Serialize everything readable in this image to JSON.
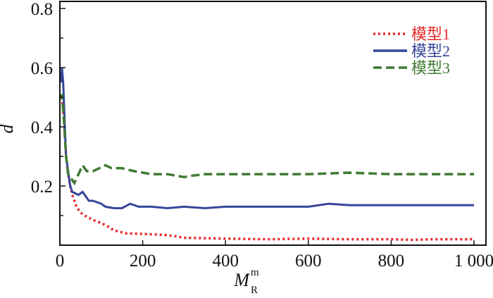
{
  "chart_data": {
    "type": "line",
    "title": "",
    "xlabel": {
      "main": "M",
      "sub": "R",
      "sup": "m"
    },
    "ylabel": "d",
    "xlim": [
      0,
      1000
    ],
    "ylim": [
      0,
      0.8
    ],
    "xticks": [
      0,
      200,
      400,
      600,
      800,
      1000
    ],
    "xtick_labels": [
      "0",
      "200",
      "400",
      "600",
      "800",
      "1 000"
    ],
    "yticks": [
      0.2,
      0.4,
      0.6,
      0.8
    ],
    "ytick_labels": [
      "0.2",
      "0.4",
      "0.6",
      "0.8"
    ],
    "grid": false,
    "legend_position": "top-right",
    "series": [
      {
        "name": "模型1",
        "color": "#e8262a",
        "style": "dotted",
        "x": [
          5,
          10,
          15,
          20,
          25,
          30,
          40,
          50,
          60,
          80,
          100,
          120,
          130,
          160,
          200,
          250,
          280,
          300,
          400,
          500,
          600,
          700,
          800,
          850,
          900,
          1000
        ],
        "y": [
          0.5,
          0.42,
          0.3,
          0.24,
          0.2,
          0.17,
          0.13,
          0.11,
          0.1,
          0.085,
          0.075,
          0.06,
          0.05,
          0.04,
          0.038,
          0.035,
          0.03,
          0.025,
          0.022,
          0.02,
          0.022,
          0.02,
          0.02,
          0.018,
          0.02,
          0.02
        ]
      },
      {
        "name": "模型2",
        "color": "#36459a",
        "style": "solid",
        "x": [
          3,
          5,
          8,
          12,
          15,
          20,
          25,
          30,
          45,
          55,
          60,
          70,
          80,
          100,
          110,
          130,
          150,
          170,
          190,
          220,
          260,
          300,
          350,
          400,
          500,
          600,
          650,
          700,
          800,
          900,
          1000
        ],
        "y": [
          0.55,
          0.6,
          0.55,
          0.4,
          0.3,
          0.25,
          0.2,
          0.18,
          0.17,
          0.18,
          0.17,
          0.15,
          0.15,
          0.14,
          0.13,
          0.125,
          0.125,
          0.14,
          0.13,
          0.13,
          0.125,
          0.13,
          0.125,
          0.13,
          0.13,
          0.13,
          0.14,
          0.135,
          0.135,
          0.135,
          0.135
        ]
      },
      {
        "name": "模型3",
        "color": "#3f7a33",
        "style": "dashed",
        "x": [
          3,
          5,
          10,
          15,
          20,
          25,
          35,
          45,
          55,
          65,
          80,
          95,
          110,
          125,
          150,
          180,
          220,
          260,
          300,
          320,
          350,
          400,
          500,
          600,
          700,
          800,
          900,
          1000
        ],
        "y": [
          0.5,
          0.51,
          0.42,
          0.3,
          0.24,
          0.23,
          0.21,
          0.24,
          0.27,
          0.25,
          0.25,
          0.26,
          0.27,
          0.26,
          0.26,
          0.25,
          0.24,
          0.24,
          0.23,
          0.235,
          0.24,
          0.24,
          0.24,
          0.24,
          0.245,
          0.24,
          0.24,
          0.24
        ]
      }
    ]
  }
}
